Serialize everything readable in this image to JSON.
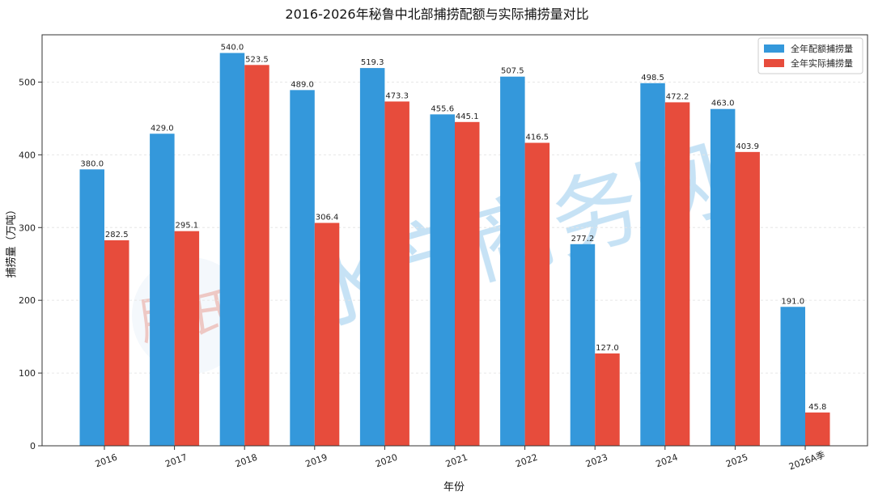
{
  "chart_data": {
    "type": "bar",
    "title": "2016-2026年秘鲁中北部捕捞配额与实际捕捞量对比",
    "xlabel": "年份",
    "ylabel": "捕捞量（万吨）",
    "categories": [
      "2016",
      "2017",
      "2018",
      "2019",
      "2020",
      "2021",
      "2022",
      "2023",
      "2024",
      "2025",
      "2026A季"
    ],
    "ylim": [
      0,
      565
    ],
    "yticks": [
      0,
      100,
      200,
      300,
      400,
      500
    ],
    "grid": true,
    "legend_position": "top-right",
    "series": [
      {
        "name": "全年配额捕捞量",
        "color": "#3498db",
        "values": [
          380.0,
          429.0,
          540.0,
          489.0,
          519.3,
          455.6,
          507.5,
          277.2,
          498.5,
          463.0,
          191.0
        ],
        "labels": [
          "380.0",
          "429.0",
          "540.0",
          "489.0",
          "519.3",
          "455.6",
          "507.5",
          "277.2",
          "498.5",
          "463.0",
          "191.0"
        ]
      },
      {
        "name": "全年实际捕捞量",
        "color": "#e74c3c",
        "values": [
          282.5,
          295.1,
          523.5,
          306.4,
          473.3,
          445.1,
          416.5,
          127.0,
          472.2,
          403.9,
          45.8
        ],
        "labels": [
          "282.5",
          "295.1",
          "523.5",
          "306.4",
          "473.3",
          "445.1",
          "416.5",
          "127.0",
          "472.2",
          "403.9",
          "45.8"
        ]
      }
    ]
  },
  "watermark": {
    "text": "水产商务网",
    "logo_text": "腾氏"
  }
}
